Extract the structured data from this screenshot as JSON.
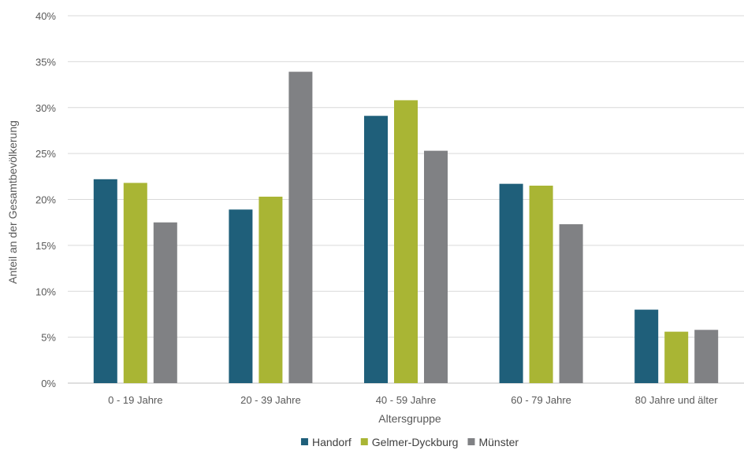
{
  "chart_data": {
    "type": "bar",
    "title": "",
    "xlabel": "Altersgruppe",
    "ylabel": "Anteil an der Gesamtbevölkerung",
    "ylim": [
      0,
      40
    ],
    "y_ticks": [
      "0%",
      "5%",
      "10%",
      "15%",
      "20%",
      "25%",
      "30%",
      "35%",
      "40%"
    ],
    "grid": true,
    "legend_position": "bottom",
    "categories": [
      "0 - 19 Jahre",
      "20 - 39 Jahre",
      "40 - 59 Jahre",
      "60 - 79 Jahre",
      "80 Jahre und älter"
    ],
    "series": [
      {
        "name": "Handorf",
        "color": "#1F5F7A",
        "values": [
          22.2,
          18.9,
          29.1,
          21.7,
          8.0
        ]
      },
      {
        "name": "Gelmer-Dyckburg",
        "color": "#A9B534",
        "values": [
          21.8,
          20.3,
          30.8,
          21.5,
          5.6
        ]
      },
      {
        "name": "Münster",
        "color": "#808184",
        "values": [
          17.5,
          33.9,
          25.3,
          17.3,
          5.8
        ]
      }
    ]
  }
}
